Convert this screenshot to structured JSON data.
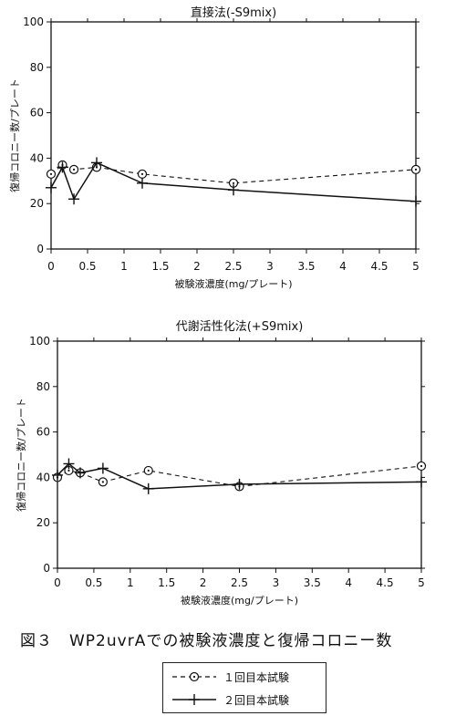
{
  "caption": "図３　WP2uvrAでの被験液濃度と復帰コロニー数",
  "legend": {
    "items": [
      {
        "label": "１回目本試験",
        "style": "dashed-circle-dot"
      },
      {
        "label": "２回目本試験",
        "style": "solid-cross"
      }
    ]
  },
  "chart_data": [
    {
      "type": "line",
      "title": "直接法(-S9mix)",
      "xlabel": "被験液濃度(mg/プレート)",
      "ylabel": "復帰コロニー数/プレート",
      "xlim": [
        0,
        5
      ],
      "ylim": [
        0,
        100
      ],
      "xticks": [
        "0",
        "0.5",
        "1",
        "1.5",
        "2",
        "2.5",
        "3",
        "3.5",
        "4",
        "4.5",
        "5"
      ],
      "yticks": [
        "0",
        "20",
        "40",
        "60",
        "80",
        "100"
      ],
      "grid": false,
      "series": [
        {
          "name": "１回目本試験",
          "style": "dashed",
          "marker": "circle-dot",
          "x": [
            0,
            0.156,
            0.313,
            0.625,
            1.25,
            2.5,
            5
          ],
          "y": [
            33,
            37,
            35,
            36,
            33,
            29,
            35
          ]
        },
        {
          "name": "２回目本試験",
          "style": "solid",
          "marker": "cross",
          "x": [
            0,
            0.156,
            0.313,
            0.625,
            1.25,
            2.5,
            5
          ],
          "y": [
            27,
            36,
            22,
            38,
            29,
            26,
            21
          ]
        }
      ]
    },
    {
      "type": "line",
      "title": "代謝活性化法(+S9mix)",
      "xlabel": "被験液濃度(mg/プレート)",
      "ylabel": "復帰コロニー数/プレート",
      "xlim": [
        0,
        5
      ],
      "ylim": [
        0,
        100
      ],
      "xticks": [
        "0",
        "0.5",
        "1",
        "1.5",
        "2",
        "2.5",
        "3",
        "3.5",
        "4",
        "4.5",
        "5"
      ],
      "yticks": [
        "0",
        "20",
        "40",
        "60",
        "80",
        "100"
      ],
      "grid": false,
      "series": [
        {
          "name": "１回目本試験",
          "style": "dashed",
          "marker": "circle-dot",
          "x": [
            0,
            0.156,
            0.313,
            0.625,
            1.25,
            2.5,
            5
          ],
          "y": [
            40,
            43,
            42,
            38,
            43,
            36,
            45
          ]
        },
        {
          "name": "２回目本試験",
          "style": "solid",
          "marker": "cross",
          "x": [
            0,
            0.156,
            0.313,
            0.625,
            1.25,
            2.5,
            5
          ],
          "y": [
            41,
            46,
            42,
            44,
            35,
            37,
            38
          ]
        }
      ]
    }
  ]
}
